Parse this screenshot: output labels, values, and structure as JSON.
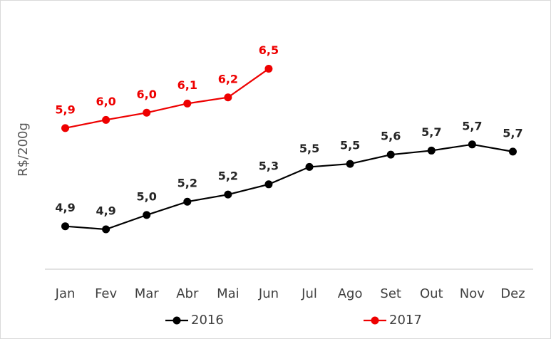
{
  "chart_data": {
    "type": "line",
    "y_label": "R$/200g",
    "categories": [
      "Jan",
      "Fev",
      "Mar",
      "Abr",
      "Mai",
      "Jun",
      "Jul",
      "Ago",
      "Set",
      "Out",
      "Nov",
      "Dez"
    ],
    "series": [
      {
        "name": "2016",
        "color": "#000000",
        "values": [
          4.92,
          4.89,
          5.03,
          5.16,
          5.23,
          5.33,
          5.5,
          5.53,
          5.62,
          5.66,
          5.72,
          5.65
        ],
        "value_labels": [
          "4,9",
          "4,9",
          "5,0",
          "5,2",
          "5,2",
          "5,3",
          "5,5",
          "5,5",
          "5,6",
          "5,7",
          "5,7",
          "5,7"
        ]
      },
      {
        "name": "2017",
        "color": "#ee0000",
        "values": [
          5.88,
          5.96,
          6.03,
          6.12,
          6.18,
          6.46,
          null,
          null,
          null,
          null,
          null,
          null
        ],
        "value_labels": [
          "5,9",
          "6,0",
          "6,0",
          "6,1",
          "6,2",
          "6,5",
          null,
          null,
          null,
          null,
          null,
          null
        ]
      }
    ],
    "ylim": [
      4.5,
      7.0
    ]
  }
}
